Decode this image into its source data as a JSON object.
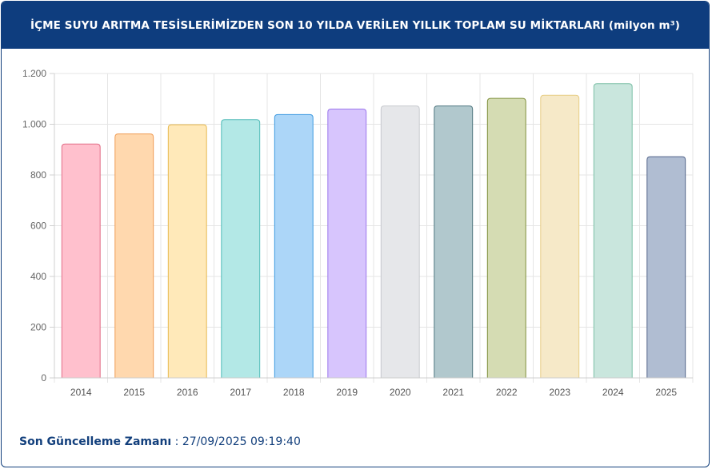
{
  "header": {
    "title": "İÇME SUYU ARITMA TESİSLERİMİZDEN SON 10 YILDA VERİLEN YILLIK TOPLAM SU MİKTARLARI (milyon m³)"
  },
  "footer": {
    "label": "Son Güncelleme Zamanı",
    "separator": " : ",
    "timestamp": "27/09/2025 09:19:40"
  },
  "chart_data": {
    "type": "bar",
    "title": "İÇME SUYU ARITMA TESİSLERİMİZDEN SON 10 YILDA VERİLEN YILLIK TOPLAM SU MİKTARLARI (milyon m³)",
    "xlabel": "",
    "ylabel": "",
    "ylim": [
      0,
      1200
    ],
    "yticks": [
      0,
      200,
      400,
      600,
      800,
      1000,
      1200
    ],
    "ytick_labels": [
      "0",
      "200",
      "400",
      "600",
      "800",
      "1.000",
      "1.200"
    ],
    "grid": true,
    "categories": [
      "2014",
      "2015",
      "2016",
      "2017",
      "2018",
      "2019",
      "2020",
      "2021",
      "2022",
      "2023",
      "2024",
      "2025"
    ],
    "values": [
      922,
      962,
      998,
      1018,
      1038,
      1060,
      1072,
      1072,
      1102,
      1114,
      1160,
      872
    ],
    "fill_colors": [
      "#ffc0cd",
      "#ffd8ae",
      "#ffe9b9",
      "#b3e8e6",
      "#acd6f8",
      "#d7c5fd",
      "#e6e7ea",
      "#b1c8cd",
      "#d5dcb3",
      "#f6e9c8",
      "#c9e6dd",
      "#b0bdd2"
    ],
    "border_colors": [
      "#e26d87",
      "#f09c55",
      "#e7b94f",
      "#52bcb8",
      "#3e9ae0",
      "#9c77ec",
      "#c6c9ce",
      "#4f7780",
      "#7e8e3a",
      "#e7cd86",
      "#7cbfa6",
      "#53658b"
    ]
  }
}
